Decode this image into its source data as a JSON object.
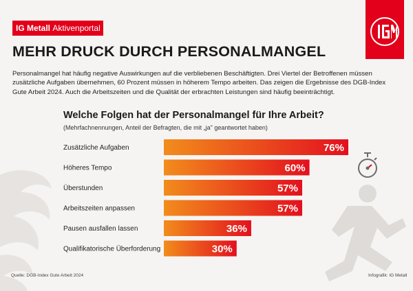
{
  "brand": {
    "name": "IG Metall",
    "portal": "Aktivenportal"
  },
  "colors": {
    "brand_red": "#e2001a",
    "bar_start": "#f28c1c",
    "bar_end": "#e3101e"
  },
  "icons": {
    "logo": "ig-metall-logo-icon",
    "stopwatch": "stopwatch-icon",
    "runner": "running-person-icon"
  },
  "headline": "MEHR DRUCK DURCH PERSONALMANGEL",
  "intro": "Personalmangel hat häufig negative Auswirkungen auf die verbliebenen Beschäftigten. Drei Viertel der Betroffenen müssen zusätzliche Aufgaben übernehmen, 60 Prozent müssen in höherem Tempo arbeiten. Das zeigen die Ergebnisse des DGB-Index Gute Arbeit 2024. Auch die Arbeitszeiten und die Qualität der erbrachten Leistungen sind häufig beeinträchtigt.",
  "chart_data": {
    "type": "bar",
    "orientation": "horizontal",
    "title": "Welche Folgen hat der Personalmangel für Ihre Arbeit?",
    "subtitle": "(Mehrfachnennungen, Anteil der Befragten, die mit „ja\" geantwortet haben)",
    "categories": [
      "Zusätzliche Aufgaben",
      "Höheres Tempo",
      "Überstunden",
      "Arbeitszeiten anpassen",
      "Pausen ausfallen lassen",
      "Qualifikatorische Überforderung"
    ],
    "values": [
      76,
      60,
      57,
      57,
      36,
      30
    ],
    "value_labels": [
      "76%",
      "60%",
      "57%",
      "57%",
      "36%",
      "30%"
    ],
    "unit": "%",
    "xlim": [
      0,
      76
    ],
    "grid": false,
    "legend": "none"
  },
  "footer": {
    "source": "Quelle: DGB-Index Gute Arbeit 2024",
    "credit": "Infografik: IG Metall"
  }
}
